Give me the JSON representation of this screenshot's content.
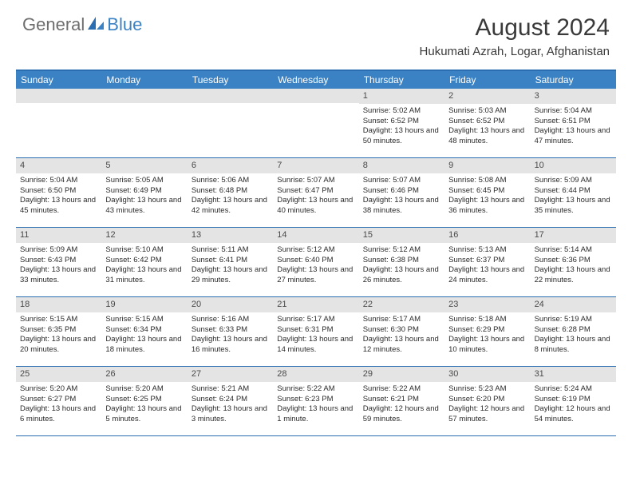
{
  "logo": {
    "part1": "General",
    "part2": "Blue"
  },
  "title": "August 2024",
  "location": "Hukumati Azrah, Logar, Afghanistan",
  "colors": {
    "header_bg": "#3b82c4",
    "rule": "#2a6db0",
    "daynum_bg": "#e4e4e4",
    "text": "#2b2b2b",
    "logo_gray": "#6e6e6e"
  },
  "dow": [
    "Sunday",
    "Monday",
    "Tuesday",
    "Wednesday",
    "Thursday",
    "Friday",
    "Saturday"
  ],
  "weeks": [
    [
      {
        "n": "",
        "l": []
      },
      {
        "n": "",
        "l": []
      },
      {
        "n": "",
        "l": []
      },
      {
        "n": "",
        "l": []
      },
      {
        "n": "1",
        "l": [
          "Sunrise: 5:02 AM",
          "Sunset: 6:52 PM",
          "Daylight: 13 hours and 50 minutes."
        ]
      },
      {
        "n": "2",
        "l": [
          "Sunrise: 5:03 AM",
          "Sunset: 6:52 PM",
          "Daylight: 13 hours and 48 minutes."
        ]
      },
      {
        "n": "3",
        "l": [
          "Sunrise: 5:04 AM",
          "Sunset: 6:51 PM",
          "Daylight: 13 hours and 47 minutes."
        ]
      }
    ],
    [
      {
        "n": "4",
        "l": [
          "Sunrise: 5:04 AM",
          "Sunset: 6:50 PM",
          "Daylight: 13 hours and 45 minutes."
        ]
      },
      {
        "n": "5",
        "l": [
          "Sunrise: 5:05 AM",
          "Sunset: 6:49 PM",
          "Daylight: 13 hours and 43 minutes."
        ]
      },
      {
        "n": "6",
        "l": [
          "Sunrise: 5:06 AM",
          "Sunset: 6:48 PM",
          "Daylight: 13 hours and 42 minutes."
        ]
      },
      {
        "n": "7",
        "l": [
          "Sunrise: 5:07 AM",
          "Sunset: 6:47 PM",
          "Daylight: 13 hours and 40 minutes."
        ]
      },
      {
        "n": "8",
        "l": [
          "Sunrise: 5:07 AM",
          "Sunset: 6:46 PM",
          "Daylight: 13 hours and 38 minutes."
        ]
      },
      {
        "n": "9",
        "l": [
          "Sunrise: 5:08 AM",
          "Sunset: 6:45 PM",
          "Daylight: 13 hours and 36 minutes."
        ]
      },
      {
        "n": "10",
        "l": [
          "Sunrise: 5:09 AM",
          "Sunset: 6:44 PM",
          "Daylight: 13 hours and 35 minutes."
        ]
      }
    ],
    [
      {
        "n": "11",
        "l": [
          "Sunrise: 5:09 AM",
          "Sunset: 6:43 PM",
          "Daylight: 13 hours and 33 minutes."
        ]
      },
      {
        "n": "12",
        "l": [
          "Sunrise: 5:10 AM",
          "Sunset: 6:42 PM",
          "Daylight: 13 hours and 31 minutes."
        ]
      },
      {
        "n": "13",
        "l": [
          "Sunrise: 5:11 AM",
          "Sunset: 6:41 PM",
          "Daylight: 13 hours and 29 minutes."
        ]
      },
      {
        "n": "14",
        "l": [
          "Sunrise: 5:12 AM",
          "Sunset: 6:40 PM",
          "Daylight: 13 hours and 27 minutes."
        ]
      },
      {
        "n": "15",
        "l": [
          "Sunrise: 5:12 AM",
          "Sunset: 6:38 PM",
          "Daylight: 13 hours and 26 minutes."
        ]
      },
      {
        "n": "16",
        "l": [
          "Sunrise: 5:13 AM",
          "Sunset: 6:37 PM",
          "Daylight: 13 hours and 24 minutes."
        ]
      },
      {
        "n": "17",
        "l": [
          "Sunrise: 5:14 AM",
          "Sunset: 6:36 PM",
          "Daylight: 13 hours and 22 minutes."
        ]
      }
    ],
    [
      {
        "n": "18",
        "l": [
          "Sunrise: 5:15 AM",
          "Sunset: 6:35 PM",
          "Daylight: 13 hours and 20 minutes."
        ]
      },
      {
        "n": "19",
        "l": [
          "Sunrise: 5:15 AM",
          "Sunset: 6:34 PM",
          "Daylight: 13 hours and 18 minutes."
        ]
      },
      {
        "n": "20",
        "l": [
          "Sunrise: 5:16 AM",
          "Sunset: 6:33 PM",
          "Daylight: 13 hours and 16 minutes."
        ]
      },
      {
        "n": "21",
        "l": [
          "Sunrise: 5:17 AM",
          "Sunset: 6:31 PM",
          "Daylight: 13 hours and 14 minutes."
        ]
      },
      {
        "n": "22",
        "l": [
          "Sunrise: 5:17 AM",
          "Sunset: 6:30 PM",
          "Daylight: 13 hours and 12 minutes."
        ]
      },
      {
        "n": "23",
        "l": [
          "Sunrise: 5:18 AM",
          "Sunset: 6:29 PM",
          "Daylight: 13 hours and 10 minutes."
        ]
      },
      {
        "n": "24",
        "l": [
          "Sunrise: 5:19 AM",
          "Sunset: 6:28 PM",
          "Daylight: 13 hours and 8 minutes."
        ]
      }
    ],
    [
      {
        "n": "25",
        "l": [
          "Sunrise: 5:20 AM",
          "Sunset: 6:27 PM",
          "Daylight: 13 hours and 6 minutes."
        ]
      },
      {
        "n": "26",
        "l": [
          "Sunrise: 5:20 AM",
          "Sunset: 6:25 PM",
          "Daylight: 13 hours and 5 minutes."
        ]
      },
      {
        "n": "27",
        "l": [
          "Sunrise: 5:21 AM",
          "Sunset: 6:24 PM",
          "Daylight: 13 hours and 3 minutes."
        ]
      },
      {
        "n": "28",
        "l": [
          "Sunrise: 5:22 AM",
          "Sunset: 6:23 PM",
          "Daylight: 13 hours and 1 minute."
        ]
      },
      {
        "n": "29",
        "l": [
          "Sunrise: 5:22 AM",
          "Sunset: 6:21 PM",
          "Daylight: 12 hours and 59 minutes."
        ]
      },
      {
        "n": "30",
        "l": [
          "Sunrise: 5:23 AM",
          "Sunset: 6:20 PM",
          "Daylight: 12 hours and 57 minutes."
        ]
      },
      {
        "n": "31",
        "l": [
          "Sunrise: 5:24 AM",
          "Sunset: 6:19 PM",
          "Daylight: 12 hours and 54 minutes."
        ]
      }
    ]
  ]
}
